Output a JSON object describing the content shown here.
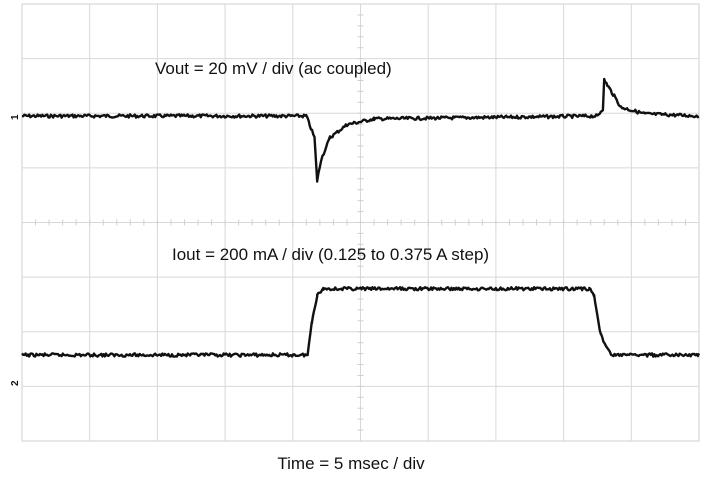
{
  "chart_data": {
    "type": "line",
    "title": "",
    "xlabel": "Time = 5 msec / div",
    "ylabel": "",
    "grid": true,
    "x_divisions": 10,
    "y_divisions": 8,
    "channel_markers": [
      "1",
      "2"
    ],
    "series": [
      {
        "name": "Vout = 20 mV / div (ac coupled)",
        "x": [
          0,
          4.2,
          4.32,
          4.36,
          4.42,
          4.55,
          4.8,
          5.2,
          8.5,
          8.58,
          8.6,
          8.68,
          8.85,
          9.2,
          10
        ],
        "y": [
          0,
          0,
          -0.3,
          -0.9,
          -0.6,
          -0.3,
          -0.12,
          -0.04,
          0,
          0.1,
          0.5,
          0.38,
          0.12,
          0.03,
          0
        ]
      },
      {
        "name": "Iout = 200 mA / div (0.125 to 0.375 A step)",
        "x": [
          0,
          4.22,
          4.28,
          4.36,
          4.45,
          8.38,
          8.45,
          8.55,
          8.7,
          10
        ],
        "y": [
          0.125,
          0.125,
          0.25,
          0.35,
          0.375,
          0.375,
          0.35,
          0.2,
          0.125,
          0.125
        ]
      }
    ]
  }
}
